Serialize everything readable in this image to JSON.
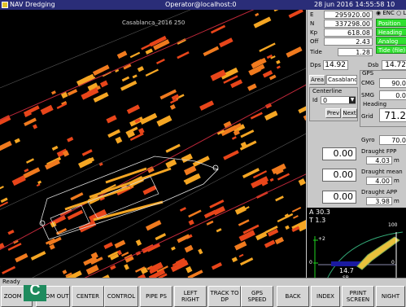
{
  "titlebar": {
    "app": "NAV Dredging",
    "user": "Operator@localhost:0",
    "clock": "28 jun 2016  14:55:58  10"
  },
  "map": {
    "caption": "Casablanca_2016    250"
  },
  "coords": [
    {
      "label": "E",
      "value": "295920.00"
    },
    {
      "label": "N",
      "value": "337298.00"
    },
    {
      "label": "Kp",
      "value": "618.08"
    },
    {
      "label": "Off",
      "value": "2.43"
    },
    {
      "label": "Tide",
      "value": "1.28"
    }
  ],
  "mode": {
    "radio": "ENC",
    "radio2": "LI"
  },
  "status_buttons": [
    "Position",
    "Heading",
    "Analog",
    "Tide (file)"
  ],
  "dps": {
    "label": "Dps",
    "value": "14.92"
  },
  "dsb": {
    "label": "Dsb",
    "value": "14.72"
  },
  "area": {
    "button": "Area",
    "value": "Casablanca"
  },
  "centerline": {
    "label": "Centerline",
    "id_label": "Id",
    "id_value": "0",
    "prev": "Prev",
    "next": "Next"
  },
  "gps": {
    "title": "GPS",
    "cmg_label": "CMG",
    "cmg_value": "90.0",
    "smg_label": "SMG",
    "smg_value": "0.0",
    "heading_title": "Heading",
    "grid_label": "Grid",
    "grid_value": "71.2",
    "gyro_label": "Gyro",
    "gyro_value": "70.0"
  },
  "offsets": [
    "0.00",
    "0.00",
    "0.00"
  ],
  "draught": {
    "fpp_label": "Draught FPP",
    "fpp_value": "4.03",
    "fpp_unit": "m",
    "mean_label": "Draught mean",
    "mean_value": "4.00",
    "mean_unit": "m",
    "app_label": "Draught APP",
    "app_value": "3.98",
    "app_unit": "m"
  },
  "dial": {
    "a": "A 30.3",
    "t": "T 1.3",
    "plus2": "+2",
    "zero": "0",
    "minus2": "-2",
    "depth": "14.7",
    "sb": "SB",
    "r100": "100",
    "r0": "0"
  },
  "status": "Ready",
  "toolbar": [
    {
      "id": "zoom-in",
      "label": "ZOOM IN"
    },
    {
      "id": "zoom-out",
      "label": "ZOOM OUT"
    },
    {
      "id": "center",
      "label": "CENTER"
    },
    {
      "id": "control",
      "label": "CONTROL"
    },
    {
      "id": "pipe-ps",
      "label": "PIPE PS"
    },
    {
      "id": "left-right",
      "label": "LEFT RIGHT"
    },
    {
      "id": "track-to-dp",
      "label": "TRACK TO DP"
    },
    {
      "id": "gps-speed",
      "label": "GPS SPEED"
    },
    {
      "id": "back",
      "label": "BACK"
    },
    {
      "id": "index",
      "label": "INDEX"
    },
    {
      "id": "print-screen",
      "label": "PRINT SCREEN"
    },
    {
      "id": "night",
      "label": "NIGHT"
    }
  ],
  "badge": "C"
}
